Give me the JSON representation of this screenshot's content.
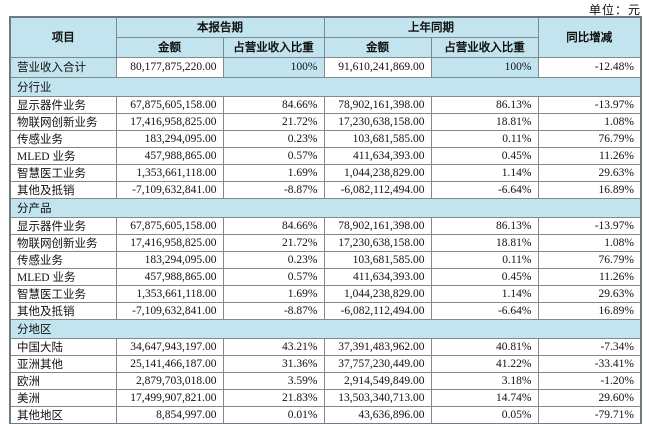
{
  "unit_label": "单位：元",
  "colors": {
    "header_bg": "#c2e4ee",
    "border": "#7f898e",
    "text": "#111111"
  },
  "table": {
    "header": {
      "item": "项目",
      "current_period": "本报告期",
      "prior_period": "上年同期",
      "amount_current": "金额",
      "pct_current": "占营业收入比重",
      "amount_prior": "金额",
      "pct_prior": "占营业收入比重",
      "yoy": "同比增减"
    },
    "total_row": {
      "cells": [
        "营业收入合计",
        "80,177,875,220.00",
        "100%",
        "91,610,241,869.00",
        "100%",
        "-12.48%"
      ],
      "highlight_cols": [
        0,
        2,
        4
      ]
    },
    "sections": [
      {
        "title": "分行业",
        "rows": [
          [
            "显示器件业务",
            "67,875,605,158.00",
            "84.66%",
            "78,902,161,398.00",
            "86.13%",
            "-13.97%"
          ],
          [
            "物联网创新业务",
            "17,416,958,825.00",
            "21.72%",
            "17,230,638,158.00",
            "18.81%",
            "1.08%"
          ],
          [
            "传感业务",
            "183,294,095.00",
            "0.23%",
            "103,681,585.00",
            "0.11%",
            "76.79%"
          ],
          [
            "MLED 业务",
            "457,988,865.00",
            "0.57%",
            "411,634,393.00",
            "0.45%",
            "11.26%"
          ],
          [
            "智慧医工业务",
            "1,353,661,118.00",
            "1.69%",
            "1,044,238,829.00",
            "1.14%",
            "29.63%"
          ],
          [
            "其他及抵销",
            "-7,109,632,841.00",
            "-8.87%",
            "-6,082,112,494.00",
            "-6.64%",
            "16.89%"
          ]
        ]
      },
      {
        "title": "分产品",
        "rows": [
          [
            "显示器件业务",
            "67,875,605,158.00",
            "84.66%",
            "78,902,161,398.00",
            "86.13%",
            "-13.97%"
          ],
          [
            "物联网创新业务",
            "17,416,958,825.00",
            "21.72%",
            "17,230,638,158.00",
            "18.81%",
            "1.08%"
          ],
          [
            "传感业务",
            "183,294,095.00",
            "0.23%",
            "103,681,585.00",
            "0.11%",
            "76.79%"
          ],
          [
            "MLED 业务",
            "457,988,865.00",
            "0.57%",
            "411,634,393.00",
            "0.45%",
            "11.26%"
          ],
          [
            "智慧医工业务",
            "1,353,661,118.00",
            "1.69%",
            "1,044,238,829.00",
            "1.14%",
            "29.63%"
          ],
          [
            "其他及抵销",
            "-7,109,632,841.00",
            "-8.87%",
            "-6,082,112,494.00",
            "-6.64%",
            "16.89%"
          ]
        ]
      },
      {
        "title": "分地区",
        "rows": [
          [
            "中国大陆",
            "34,647,943,197.00",
            "43.21%",
            "37,391,483,962.00",
            "40.81%",
            "-7.34%"
          ],
          [
            "亚洲其他",
            "25,141,466,187.00",
            "31.36%",
            "37,757,230,449.00",
            "41.22%",
            "-33.41%"
          ],
          [
            "欧洲",
            "2,879,703,018.00",
            "3.59%",
            "2,914,549,849.00",
            "3.18%",
            "-1.20%"
          ],
          [
            "美洲",
            "17,499,907,821.00",
            "21.83%",
            "13,503,340,713.00",
            "14.74%",
            "29.60%"
          ],
          [
            "其他地区",
            "8,854,997.00",
            "0.01%",
            "43,636,896.00",
            "0.05%",
            "-79.71%"
          ]
        ]
      }
    ]
  }
}
